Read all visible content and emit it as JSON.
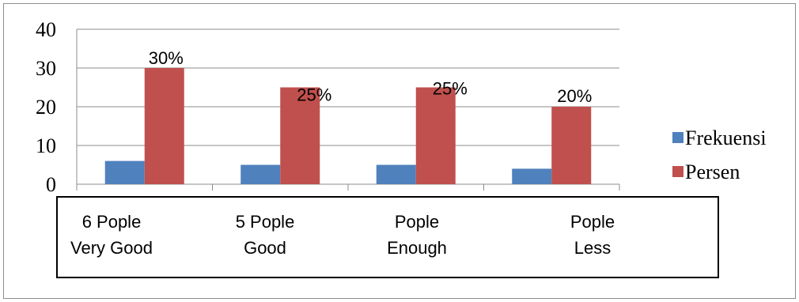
{
  "chart_data": {
    "type": "bar",
    "categories": [
      [
        "6 Pople",
        "Very Good"
      ],
      [
        "5 Pople",
        "Good"
      ],
      [
        "Pople",
        "Enough"
      ],
      [
        "Pople",
        "Less"
      ]
    ],
    "series": [
      {
        "name": "Frekuensi",
        "values": [
          6,
          5,
          5,
          4
        ],
        "color": "#4f81bd"
      },
      {
        "name": "Persen",
        "values": [
          30,
          25,
          25,
          20
        ],
        "color": "#c0504d",
        "labels": [
          "30%",
          "25%",
          "25%",
          "20%"
        ]
      }
    ],
    "ylim": [
      0,
      40
    ],
    "yticks": [
      "0",
      "10",
      "20",
      "30",
      "40"
    ],
    "grid": true,
    "legend": "right"
  }
}
